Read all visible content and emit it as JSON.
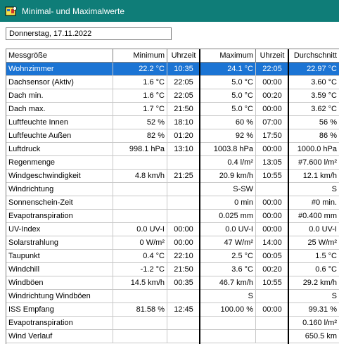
{
  "window": {
    "title": "Minimal- und Maximalwerte"
  },
  "date": "Donnerstag, 17.11.2022",
  "columns": [
    "Messgröße",
    "Minimum",
    "Uhrzeit",
    "Maximum",
    "Uhrzeit",
    "Durchschnitt"
  ],
  "rows": [
    [
      "Wohnzimmer",
      "22.2 °C",
      "10:35",
      "24.1 °C",
      "22:05",
      "22.97 °C"
    ],
    [
      "Dachsensor (Aktiv)",
      "1.6 °C",
      "22:05",
      "5.0 °C",
      "00:00",
      "3.60 °C"
    ],
    [
      "Dach min.",
      "1.6 °C",
      "22:05",
      "5.0 °C",
      "00:20",
      "3.59 °C"
    ],
    [
      "Dach max.",
      "1.7 °C",
      "21:50",
      "5.0 °C",
      "00:00",
      "3.62 °C"
    ],
    [
      "Luftfeuchte Innen",
      "52 %",
      "18:10",
      "60 %",
      "07:00",
      "56 %"
    ],
    [
      "Luftfeuchte Außen",
      "82 %",
      "01:20",
      "92 %",
      "17:50",
      "86 %"
    ],
    [
      "Luftdruck",
      "998.1 hPa",
      "13:10",
      "1003.8 hPa",
      "00:00",
      "1000.0 hPa"
    ],
    [
      "Regenmenge",
      "",
      "",
      "0.4 l/m²",
      "13:05",
      "#7.600 l/m²"
    ],
    [
      "Windgeschwindigkeit",
      "4.8 km/h",
      "21:25",
      "20.9 km/h",
      "10:55",
      "12.1 km/h"
    ],
    [
      "Windrichtung",
      "",
      "",
      "S-SW",
      "",
      "S"
    ],
    [
      "Sonnenschein-Zeit",
      "",
      "",
      "0 min",
      "00:00",
      "#0 min."
    ],
    [
      "Evapotranspiration",
      "",
      "",
      "0.025 mm",
      "00:00",
      "#0.400 mm"
    ],
    [
      "UV-Index",
      "0.0 UV-I",
      "00:00",
      "0.0 UV-I",
      "00:00",
      "0.0 UV-I"
    ],
    [
      "Solarstrahlung",
      "0 W/m²",
      "00:00",
      "47 W/m²",
      "14:00",
      "25 W/m²"
    ],
    [
      "Taupunkt",
      "0.4 °C",
      "22:10",
      "2.5 °C",
      "00:05",
      "1.5 °C"
    ],
    [
      "Windchill",
      "-1.2 °C",
      "21:50",
      "3.6 °C",
      "00:20",
      "0.6 °C"
    ],
    [
      "Windböen",
      "14.5 km/h",
      "00:35",
      "46.7 km/h",
      "10:55",
      "29.2 km/h"
    ],
    [
      "Windrichtung Windböen",
      "",
      "",
      "S",
      "",
      "S"
    ],
    [
      "ISS Empfang",
      "81.58 %",
      "12:45",
      "100.00 %",
      "00:00",
      "99.31 %"
    ],
    [
      "Evapotranspiration",
      "",
      "",
      "",
      "",
      "0.160 l/m²"
    ],
    [
      "Wind Verlauf",
      "",
      "",
      "",
      "",
      "650.5 km"
    ]
  ],
  "selected_row": 0,
  "colors": {
    "title_bar": "#0f7d78",
    "selection": "#1b74d4"
  }
}
